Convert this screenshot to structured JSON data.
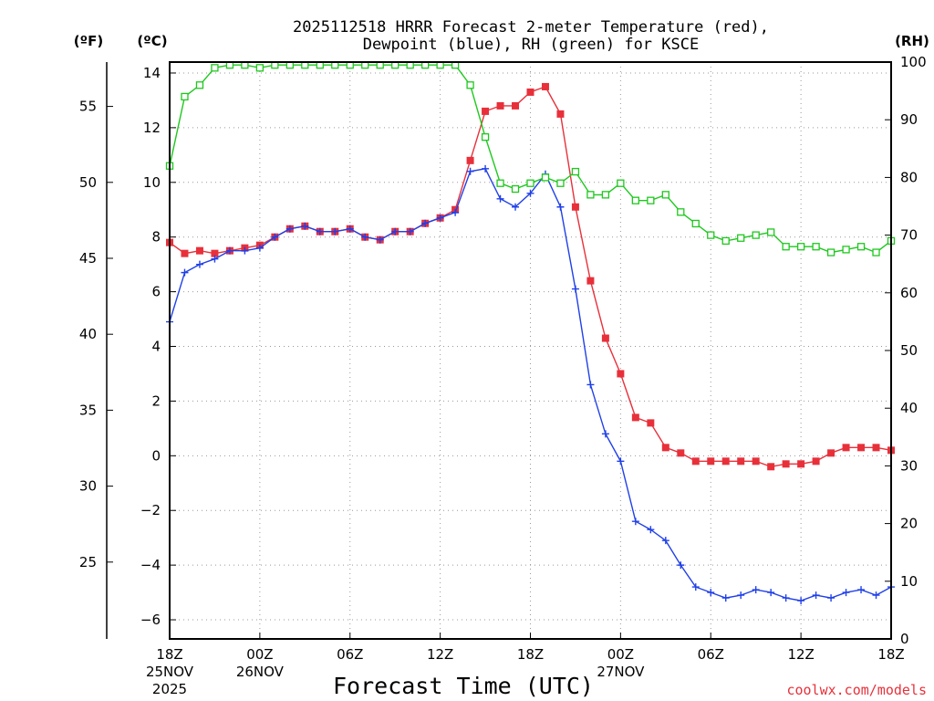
{
  "chart_data": {
    "type": "line",
    "title_line1": "2025112518 HRRR Forecast 2-meter Temperature (red),",
    "title_line2": "Dewpoint (blue), RH (green) for KSCE",
    "unit_f": "(ºF)",
    "unit_c": "(ºC)",
    "unit_rh": "(RH)",
    "xlabel": "Forecast Time (UTC)",
    "credit": "coolwx.com/models",
    "hours_range": [
      0,
      48
    ],
    "c_range": [
      -6.7,
      14.4
    ],
    "rh_range": [
      0,
      100
    ],
    "c_ticks": [
      "−6",
      "−4",
      "−2",
      "0",
      "2",
      "4",
      "6",
      "8",
      "10",
      "12",
      "14"
    ],
    "f_ticks": [
      "25",
      "30",
      "35",
      "40",
      "45",
      "50",
      "55"
    ],
    "rh_ticks": [
      "0",
      "10",
      "20",
      "30",
      "40",
      "50",
      "60",
      "70",
      "80",
      "90",
      "100"
    ],
    "x_ticks": [
      {
        "hour": 0,
        "label": "18Z",
        "date": "25NOV",
        "year": "2025"
      },
      {
        "hour": 6,
        "label": "00Z",
        "date": "26NOV",
        "year": ""
      },
      {
        "hour": 12,
        "label": "06Z",
        "date": "",
        "year": ""
      },
      {
        "hour": 18,
        "label": "12Z",
        "date": "",
        "year": ""
      },
      {
        "hour": 24,
        "label": "18Z",
        "date": "",
        "year": ""
      },
      {
        "hour": 30,
        "label": "00Z",
        "date": "27NOV",
        "year": ""
      },
      {
        "hour": 36,
        "label": "06Z",
        "date": "",
        "year": ""
      },
      {
        "hour": 42,
        "label": "12Z",
        "date": "",
        "year": ""
      },
      {
        "hour": 48,
        "label": "18Z",
        "date": "",
        "year": ""
      }
    ],
    "series": [
      {
        "name": "Temperature",
        "color": "#e8303a",
        "marker": "filled-square",
        "axis": "C",
        "values": [
          7.8,
          7.4,
          7.5,
          7.4,
          7.5,
          7.6,
          7.7,
          8.0,
          8.3,
          8.4,
          8.2,
          8.2,
          8.3,
          8.0,
          7.9,
          8.2,
          8.2,
          8.5,
          8.7,
          9.0,
          10.8,
          12.6,
          12.8,
          12.8,
          13.3,
          13.5,
          12.5,
          9.1,
          6.4,
          4.3,
          3.0,
          1.4,
          1.2,
          0.3,
          0.1,
          -0.2,
          -0.2,
          -0.2,
          -0.2,
          -0.2,
          -0.4,
          -0.3,
          -0.3,
          -0.2,
          0.1,
          0.3,
          0.3,
          0.3,
          0.2
        ]
      },
      {
        "name": "Dewpoint",
        "color": "#2040e8",
        "marker": "plus",
        "axis": "C",
        "values": [
          4.9,
          6.7,
          7.0,
          7.2,
          7.5,
          7.5,
          7.6,
          8.0,
          8.3,
          8.4,
          8.2,
          8.2,
          8.3,
          8.0,
          7.9,
          8.2,
          8.2,
          8.5,
          8.7,
          8.9,
          10.4,
          10.5,
          9.4,
          9.1,
          9.6,
          10.3,
          9.1,
          6.1,
          2.6,
          0.8,
          -0.2,
          -2.4,
          -2.7,
          -3.1,
          -4.0,
          -4.8,
          -5.0,
          -5.2,
          -5.1,
          -4.9,
          -5.0,
          -5.2,
          -5.3,
          -5.1,
          -5.2,
          -5.0,
          -4.9,
          -5.1,
          -4.8
        ]
      },
      {
        "name": "RH",
        "color": "#1ec81e",
        "marker": "open-square",
        "axis": "RH",
        "values": [
          82,
          94,
          96,
          99,
          99.5,
          99.5,
          99,
          99.5,
          99.5,
          99.5,
          99.5,
          99.5,
          99.5,
          99.5,
          99.5,
          99.5,
          99.5,
          99.5,
          99.5,
          99.5,
          96,
          87,
          79,
          78,
          79,
          80,
          79,
          81,
          77,
          77,
          79,
          76,
          76,
          77,
          74,
          72,
          70,
          69,
          69.5,
          70,
          70.5,
          68,
          68,
          68,
          67,
          67.5,
          68,
          67,
          69
        ]
      }
    ]
  }
}
